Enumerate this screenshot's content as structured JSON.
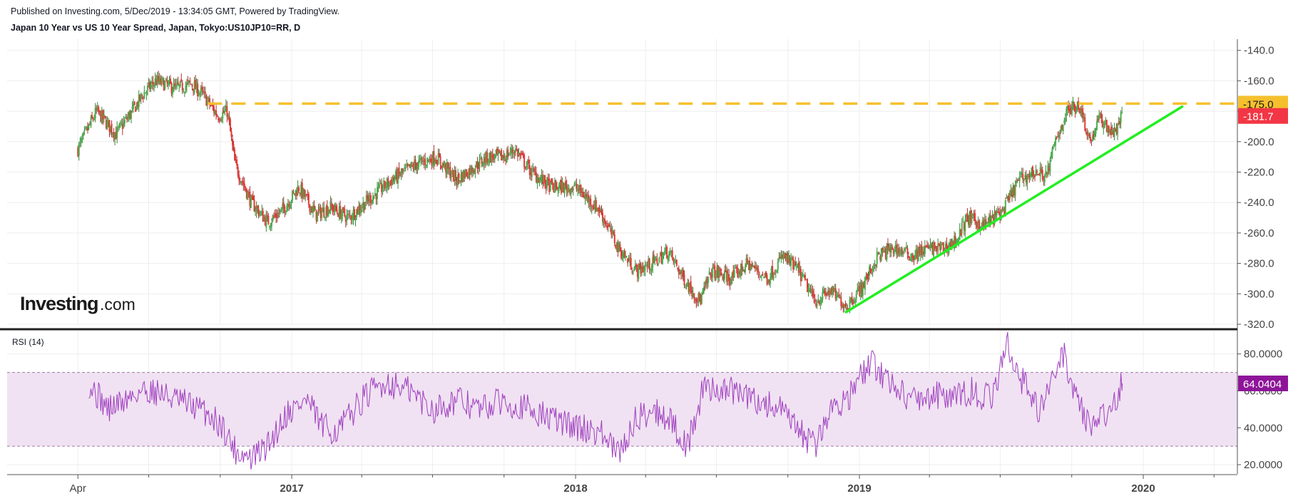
{
  "header": {
    "published": "Published on Investing.com, 5/Dec/2019 - 13:34:05 GMT, Powered by TradingView.",
    "title": "Japan 10 Year vs US 10 Year Spread, Japan, Tokyo:US10JP10=RR, D"
  },
  "logo": {
    "brand": "Investing",
    "suffix": ".com"
  },
  "colors": {
    "up": "#26a69a",
    "down": "#ef5350",
    "green_body": "#4caf50",
    "red_body": "#e53935",
    "trendline": "#22ee22",
    "resistance": "#f5c02e",
    "last_price_label": "#f23645",
    "rsi_line": "#a040c0",
    "rsi_band": "#f0e2f2",
    "rsi_label": "#8e1599",
    "grid": "#eeeeee"
  },
  "chart_data": [
    {
      "type": "candlestick",
      "title": "Japan 10 Year vs US 10 Year Spread, Japan, Tokyo:US10JP10=RR, D",
      "x_ticks": [
        "Apr",
        "2017",
        "2018",
        "2019",
        "2020"
      ],
      "x_range": [
        "2016-01-01",
        "2020-05-01"
      ],
      "y_ticks": [
        "-140.0",
        "-160.0",
        "-180.0",
        "-200.0",
        "-220.0",
        "-240.0",
        "-260.0",
        "-280.0",
        "-300.0",
        "-320.0"
      ],
      "ylim": [
        -320,
        -135
      ],
      "grid": true,
      "series": [
        {
          "name": "Spread",
          "points": [
            [
              "2016-04-01",
              -205
            ],
            [
              "2016-04-25",
              -180
            ],
            [
              "2016-05-20",
              -195
            ],
            [
              "2016-06-10",
              -180
            ],
            [
              "2016-06-25",
              -168
            ],
            [
              "2016-07-10",
              -160
            ],
            [
              "2016-08-05",
              -165
            ],
            [
              "2016-08-25",
              -162
            ],
            [
              "2016-09-10",
              -170
            ],
            [
              "2016-09-28",
              -183
            ],
            [
              "2016-10-10",
              -180
            ],
            [
              "2016-10-20",
              -215
            ],
            [
              "2016-11-10",
              -240
            ],
            [
              "2016-12-01",
              -253
            ],
            [
              "2016-12-20",
              -245
            ],
            [
              "2017-01-10",
              -230
            ],
            [
              "2017-02-01",
              -248
            ],
            [
              "2017-02-20",
              -243
            ],
            [
              "2017-03-15",
              -250
            ],
            [
              "2017-04-10",
              -238
            ],
            [
              "2017-05-10",
              -225
            ],
            [
              "2017-06-10",
              -215
            ],
            [
              "2017-07-05",
              -210
            ],
            [
              "2017-08-01",
              -225
            ],
            [
              "2017-08-20",
              -218
            ],
            [
              "2017-09-10",
              -210
            ],
            [
              "2017-10-01",
              -210
            ],
            [
              "2017-10-15",
              -205
            ],
            [
              "2017-11-05",
              -220
            ],
            [
              "2017-12-01",
              -230
            ],
            [
              "2018-01-01",
              -230
            ],
            [
              "2018-02-01",
              -245
            ],
            [
              "2018-02-25",
              -270
            ],
            [
              "2018-03-20",
              -285
            ],
            [
              "2018-04-10",
              -280
            ],
            [
              "2018-04-30",
              -272
            ],
            [
              "2018-05-20",
              -290
            ],
            [
              "2018-06-10",
              -305
            ],
            [
              "2018-06-25",
              -285
            ],
            [
              "2018-07-20",
              -290
            ],
            [
              "2018-08-10",
              -280
            ],
            [
              "2018-09-05",
              -290
            ],
            [
              "2018-09-25",
              -275
            ],
            [
              "2018-10-15",
              -285
            ],
            [
              "2018-11-05",
              -305
            ],
            [
              "2018-11-25",
              -298
            ],
            [
              "2018-12-15",
              -308
            ],
            [
              "2019-01-05",
              -295
            ],
            [
              "2019-01-25",
              -275
            ],
            [
              "2019-02-15",
              -270
            ],
            [
              "2019-03-10",
              -275
            ],
            [
              "2019-03-30",
              -270
            ],
            [
              "2019-04-20",
              -270
            ],
            [
              "2019-05-05",
              -265
            ],
            [
              "2019-05-20",
              -250
            ],
            [
              "2019-06-10",
              -255
            ],
            [
              "2019-07-05",
              -245
            ],
            [
              "2019-07-25",
              -225
            ],
            [
              "2019-08-15",
              -220
            ],
            [
              "2019-08-30",
              -222
            ],
            [
              "2019-09-10",
              -200
            ],
            [
              "2019-09-25",
              -180
            ],
            [
              "2019-10-10",
              -175
            ],
            [
              "2019-10-25",
              -200
            ],
            [
              "2019-11-05",
              -185
            ],
            [
              "2019-11-25",
              -195
            ],
            [
              "2019-12-05",
              -181.7
            ]
          ]
        }
      ],
      "annotations": {
        "resistance": {
          "value": -175.0,
          "label": "-175.0"
        },
        "last_price": {
          "value": -181.7,
          "label": "-181.7"
        },
        "trendline": {
          "from": [
            "2018-12-15",
            -312
          ],
          "to": [
            "2020-02-20",
            -177
          ]
        }
      }
    },
    {
      "type": "line",
      "title": "RSI (14)",
      "y_ticks": [
        "80.0000",
        "60.0000",
        "40.0000",
        "20.0000"
      ],
      "ylim": [
        15,
        93
      ],
      "band": [
        30,
        70
      ],
      "grid": true,
      "series": [
        {
          "points": [
            [
              "2016-04-15",
              64
            ],
            [
              "2016-05-10",
              50
            ],
            [
              "2016-06-01",
              55
            ],
            [
              "2016-06-20",
              60
            ],
            [
              "2016-07-10",
              60
            ],
            [
              "2016-08-05",
              55
            ],
            [
              "2016-08-25",
              52
            ],
            [
              "2016-09-15",
              48
            ],
            [
              "2016-10-05",
              40
            ],
            [
              "2016-10-20",
              28
            ],
            [
              "2016-11-10",
              23
            ],
            [
              "2016-12-01",
              30
            ],
            [
              "2016-12-25",
              48
            ],
            [
              "2017-01-20",
              55
            ],
            [
              "2017-02-10",
              40
            ],
            [
              "2017-03-01",
              38
            ],
            [
              "2017-04-01",
              55
            ],
            [
              "2017-05-01",
              65
            ],
            [
              "2017-06-01",
              60
            ],
            [
              "2017-07-01",
              50
            ],
            [
              "2017-08-01",
              55
            ],
            [
              "2017-09-01",
              50
            ],
            [
              "2017-10-01",
              55
            ],
            [
              "2017-11-01",
              50
            ],
            [
              "2017-12-01",
              45
            ],
            [
              "2018-01-05",
              40
            ],
            [
              "2018-02-01",
              38
            ],
            [
              "2018-02-25",
              25
            ],
            [
              "2018-03-20",
              45
            ],
            [
              "2018-04-10",
              50
            ],
            [
              "2018-05-01",
              45
            ],
            [
              "2018-05-25",
              30
            ],
            [
              "2018-06-15",
              62
            ],
            [
              "2018-07-20",
              60
            ],
            [
              "2018-08-20",
              55
            ],
            [
              "2018-09-20",
              50
            ],
            [
              "2018-10-15",
              38
            ],
            [
              "2018-11-05",
              30
            ],
            [
              "2018-11-25",
              50
            ],
            [
              "2018-12-20",
              58
            ],
            [
              "2019-01-15",
              75
            ],
            [
              "2019-02-10",
              65
            ],
            [
              "2019-03-10",
              55
            ],
            [
              "2019-04-10",
              58
            ],
            [
              "2019-05-01",
              55
            ],
            [
              "2019-05-25",
              60
            ],
            [
              "2019-06-20",
              55
            ],
            [
              "2019-07-10",
              85
            ],
            [
              "2019-07-30",
              65
            ],
            [
              "2019-08-20",
              50
            ],
            [
              "2019-09-01",
              60
            ],
            [
              "2019-09-20",
              80
            ],
            [
              "2019-10-05",
              60
            ],
            [
              "2019-10-25",
              40
            ],
            [
              "2019-11-10",
              45
            ],
            [
              "2019-11-25",
              55
            ],
            [
              "2019-12-05",
              64.0404
            ]
          ]
        }
      ],
      "annotations": {
        "last_value": {
          "value": 64.0404,
          "label": "64.0404"
        }
      }
    }
  ]
}
